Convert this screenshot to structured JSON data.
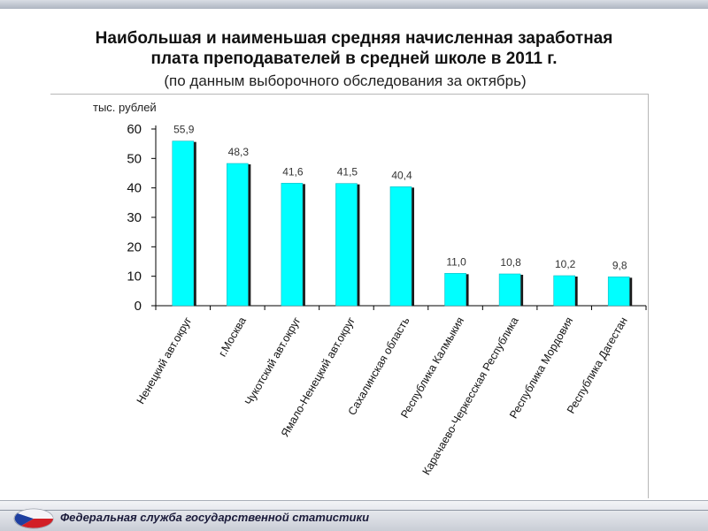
{
  "header": {
    "title_line1": "Наибольшая и наименьшая средняя начисленная заработная",
    "title_line2": "плата преподавателей в средней школе в 2011 г.",
    "subtitle": "(по данным выборочного обследования за октябрь)"
  },
  "footer": {
    "text": "Федеральная служба государственной статистики"
  },
  "colors": {
    "bar": "#00FFFF",
    "bar_shadow": "#1a1a1a",
    "axis": "#000000"
  },
  "chart_data": {
    "type": "bar",
    "title": "Наибольшая и наименьшая средняя начисленная заработная плата преподавателей в средней школе в 2011 г.",
    "subtitle": "(по данным выборочного обследования за октябрь)",
    "ylabel": "тыс. рублей",
    "ylim": [
      0,
      60
    ],
    "yticks": [
      0,
      10,
      20,
      30,
      40,
      50,
      60
    ],
    "grid": false,
    "categories": [
      "Ненецкий авт.округ",
      "г.Москва",
      "Чукотский авт.округ",
      "Ямало-Ненецкий авт.округ",
      "Сахалинская область",
      "Республика Калмыкия",
      "Карачаево-Черкесская Республика",
      "Республика Мордовия",
      "Республика Дагестан"
    ],
    "values": [
      55.9,
      48.3,
      41.6,
      41.5,
      40.4,
      11.0,
      10.8,
      10.2,
      9.8
    ],
    "value_labels": [
      "55,9",
      "48,3",
      "41,6",
      "41,5",
      "40,4",
      "11,0",
      "10,8",
      "10,2",
      "9,8"
    ]
  }
}
